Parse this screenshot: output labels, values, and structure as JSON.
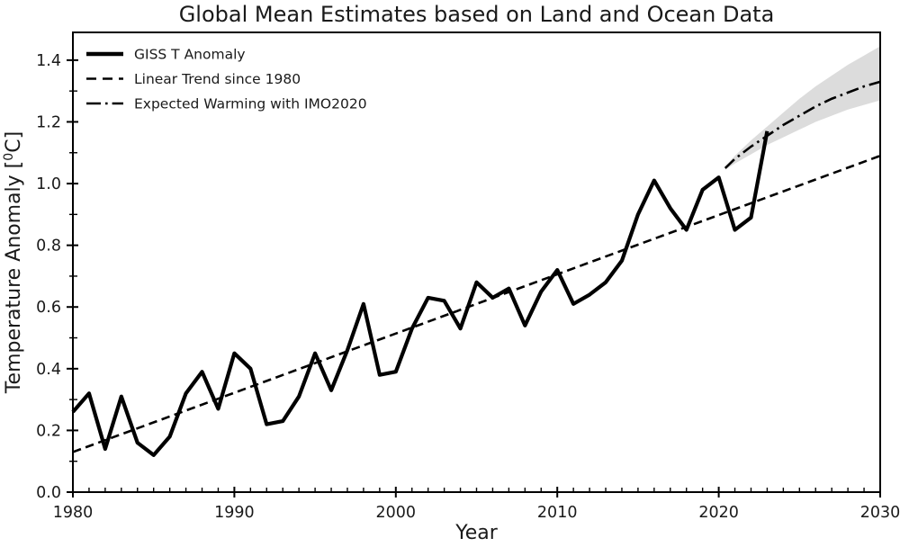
{
  "title": "Global Mean Estimates based on Land and Ocean Data",
  "colors": {
    "line": "#000000",
    "band_fill": "#d6d6d6",
    "background": "#ffffff",
    "text": "#1a1a1a"
  },
  "chart_data": {
    "type": "line",
    "title": "Global Mean Estimates based on Land and Ocean Data",
    "xlabel": "Year",
    "ylabel": "Temperature Anomaly [0C]",
    "ylabel_parts": {
      "prefix": "Temperature Anomaly [",
      "sup": "0",
      "suffix": "C]"
    },
    "xlim": [
      1980,
      2030
    ],
    "ylim": [
      0,
      1.49
    ],
    "grid": false,
    "legend_position": "upper left",
    "xticks": [
      1980,
      1990,
      2000,
      2010,
      2020,
      2030
    ],
    "xtick_labels": [
      "1980",
      "1990",
      "2000",
      "2010",
      "2020",
      "2030"
    ],
    "x_minor_step": 1,
    "yticks": [
      0.0,
      0.2,
      0.4,
      0.6,
      0.8,
      1.0,
      1.2,
      1.4
    ],
    "ytick_labels": [
      "0.0",
      "0.2",
      "0.4",
      "0.6",
      "0.8",
      "1.0",
      "1.2",
      "1.4"
    ],
    "y_minor_step": 0.1,
    "legend": [
      {
        "label": "GISS T Anomaly",
        "style": "solid"
      },
      {
        "label": "Linear Trend since 1980",
        "style": "dashed"
      },
      {
        "label": "Expected Warming with IMO2020",
        "style": "dashdot"
      }
    ],
    "series": [
      {
        "name": "GISS T Anomaly",
        "style": "solid",
        "x": [
          1980,
          1981,
          1982,
          1983,
          1984,
          1985,
          1986,
          1987,
          1988,
          1989,
          1990,
          1991,
          1992,
          1993,
          1994,
          1995,
          1996,
          1997,
          1998,
          1999,
          2000,
          2001,
          2002,
          2003,
          2004,
          2005,
          2006,
          2007,
          2008,
          2009,
          2010,
          2011,
          2012,
          2013,
          2014,
          2015,
          2016,
          2017,
          2018,
          2019,
          2020,
          2021,
          2022,
          2023
        ],
        "y": [
          0.26,
          0.32,
          0.14,
          0.31,
          0.16,
          0.12,
          0.18,
          0.32,
          0.39,
          0.27,
          0.45,
          0.4,
          0.22,
          0.23,
          0.31,
          0.45,
          0.33,
          0.46,
          0.61,
          0.38,
          0.39,
          0.53,
          0.63,
          0.62,
          0.53,
          0.68,
          0.63,
          0.66,
          0.54,
          0.65,
          0.72,
          0.61,
          0.64,
          0.68,
          0.75,
          0.9,
          1.01,
          0.92,
          0.85,
          0.98,
          1.02,
          0.85,
          0.89,
          1.17
        ]
      },
      {
        "name": "Linear Trend since 1980",
        "style": "dashed",
        "x": [
          1980,
          2030
        ],
        "y": [
          0.13,
          1.09
        ]
      },
      {
        "name": "Expected Warming with IMO2020",
        "style": "dashdot",
        "x": [
          2020.4,
          2021,
          2022,
          2023,
          2024,
          2025,
          2026,
          2027,
          2028,
          2029,
          2030
        ],
        "y": [
          1.05,
          1.08,
          1.12,
          1.155,
          1.19,
          1.22,
          1.25,
          1.275,
          1.295,
          1.315,
          1.33
        ]
      }
    ],
    "band": {
      "name": "IMO2020 uncertainty band",
      "x": [
        2020.4,
        2021,
        2022,
        2023,
        2024,
        2025,
        2026,
        2027,
        2028,
        2029,
        2030
      ],
      "upper": [
        1.055,
        1.09,
        1.14,
        1.185,
        1.23,
        1.275,
        1.315,
        1.35,
        1.385,
        1.415,
        1.445
      ],
      "lower": [
        1.045,
        1.065,
        1.095,
        1.125,
        1.15,
        1.175,
        1.2,
        1.22,
        1.24,
        1.255,
        1.27
      ]
    }
  }
}
